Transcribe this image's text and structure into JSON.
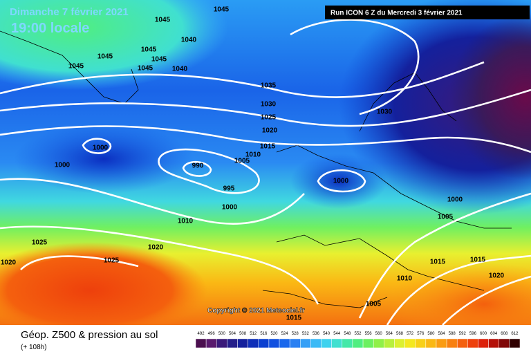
{
  "header": {
    "date": "Dimanche 7 février 2021",
    "time": "19:00 locale",
    "run": "Run ICON 6 Z du Mercredi 3 février 2021"
  },
  "map": {
    "copyright": "Copyright © 2021 Meteociel.fr",
    "isobar_labels": [
      1045,
      1045,
      1045,
      1045,
      1045,
      1045,
      1045,
      1040,
      1040,
      1035,
      1030,
      1025,
      1020,
      1015,
      1010,
      1005,
      1000,
      1000,
      990,
      995,
      1000,
      1010,
      1020,
      1025,
      1025,
      1020,
      1030,
      1000,
      1000,
      1005,
      1015,
      1015,
      1010,
      1020,
      1005,
      1015
    ]
  },
  "footer": {
    "title": "Géop. Z500 & pression au sol",
    "lead": "(+ 108h)"
  },
  "legend": {
    "values": [
      492,
      496,
      500,
      504,
      508,
      512,
      516,
      520,
      524,
      528,
      532,
      536,
      540,
      544,
      548,
      552,
      556,
      560,
      564,
      568,
      572,
      576,
      580,
      584,
      588,
      592,
      596,
      600,
      604,
      608,
      612
    ],
    "colors": [
      "#4b0f4f",
      "#5a1a6e",
      "#3a1a7a",
      "#241e8a",
      "#14209c",
      "#0f2fb8",
      "#0b3fd0",
      "#1050e0",
      "#1a68ec",
      "#2a80f2",
      "#36a0f6",
      "#3cbaf6",
      "#3ed2ee",
      "#40e0d0",
      "#44e8a8",
      "#50ee80",
      "#6cf060",
      "#90f048",
      "#b8f03c",
      "#dcf030",
      "#f4e820",
      "#f8d018",
      "#fab814",
      "#fa9c12",
      "#f88010",
      "#f4600e",
      "#ee400c",
      "#dc200a",
      "#b41008",
      "#800808",
      "#300000"
    ]
  }
}
